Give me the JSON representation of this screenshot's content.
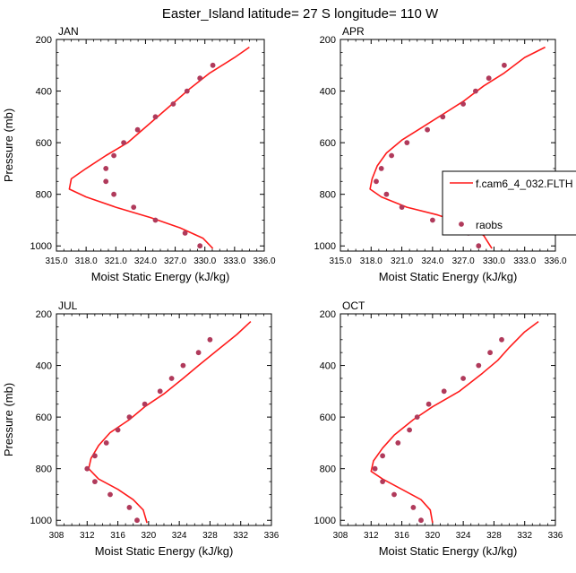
{
  "figure": {
    "title": "Easter_Island  latitude= 27 S longitude= 110 W",
    "ylabel": "Pressure (mb)",
    "xlabel": "Moist Static Energy (kJ/kg)"
  },
  "legend": {
    "model_label": "f.cam6_4_032.FLTH",
    "obs_label": "raobs"
  },
  "colors": {
    "model_line": "#ff1a1a",
    "obs_marker": "#b03a5b",
    "axis": "#000000"
  },
  "chart_data": [
    {
      "type": "line",
      "panel_title": "JAN",
      "xlim": [
        315,
        336
      ],
      "ylim": [
        200,
        1020
      ],
      "y_reversed": true,
      "xticks": [
        315,
        318,
        321,
        324,
        327,
        330,
        333,
        336
      ],
      "xtick_labels": [
        "315.0",
        "318.0",
        "321.0",
        "324.0",
        "327.0",
        "330.0",
        "333.0",
        "336.0"
      ],
      "yticks": [
        200,
        400,
        600,
        800,
        1000
      ],
      "series": [
        {
          "name": "f.cam6_4_032.FLTH",
          "kind": "line",
          "points": [
            [
              334.5,
              230
            ],
            [
              333.0,
              270
            ],
            [
              330.5,
              330
            ],
            [
              328.5,
              390
            ],
            [
              327.0,
              440
            ],
            [
              325.5,
              490
            ],
            [
              324.0,
              540
            ],
            [
              322.2,
              600
            ],
            [
              320.0,
              650
            ],
            [
              318.0,
              700
            ],
            [
              316.5,
              740
            ],
            [
              316.3,
              780
            ],
            [
              318.0,
              810
            ],
            [
              321.0,
              850
            ],
            [
              324.5,
              890
            ],
            [
              327.5,
              930
            ],
            [
              329.8,
              970
            ],
            [
              330.8,
              1010
            ]
          ]
        },
        {
          "name": "raobs",
          "kind": "scatter",
          "points": [
            [
              330.8,
              300
            ],
            [
              329.5,
              350
            ],
            [
              328.2,
              400
            ],
            [
              326.8,
              450
            ],
            [
              325.0,
              500
            ],
            [
              323.2,
              550
            ],
            [
              321.8,
              600
            ],
            [
              320.8,
              650
            ],
            [
              320.0,
              700
            ],
            [
              320.0,
              750
            ],
            [
              320.8,
              800
            ],
            [
              322.8,
              850
            ],
            [
              325.0,
              900
            ],
            [
              328.0,
              950
            ],
            [
              329.5,
              1000
            ]
          ]
        }
      ]
    },
    {
      "type": "line",
      "panel_title": "APR",
      "xlim": [
        315,
        336
      ],
      "ylim": [
        200,
        1020
      ],
      "y_reversed": true,
      "xticks": [
        315,
        318,
        321,
        324,
        327,
        330,
        333,
        336
      ],
      "xtick_labels": [
        "315.0",
        "318.0",
        "321.0",
        "324.0",
        "327.0",
        "330.0",
        "333.0",
        "336.0"
      ],
      "yticks": [
        200,
        400,
        600,
        800,
        1000
      ],
      "series": [
        {
          "name": "f.cam6_4_032.FLTH",
          "kind": "line",
          "points": [
            [
              335.0,
              230
            ],
            [
              333.0,
              270
            ],
            [
              331.0,
              330
            ],
            [
              329.0,
              380
            ],
            [
              327.0,
              440
            ],
            [
              325.0,
              490
            ],
            [
              323.0,
              540
            ],
            [
              321.0,
              590
            ],
            [
              319.5,
              640
            ],
            [
              318.6,
              690
            ],
            [
              318.1,
              740
            ],
            [
              317.9,
              780
            ],
            [
              319.0,
              810
            ],
            [
              321.5,
              850
            ],
            [
              324.5,
              880
            ],
            [
              327.5,
              920
            ],
            [
              329.0,
              960
            ],
            [
              329.8,
              1010
            ]
          ]
        },
        {
          "name": "raobs",
          "kind": "scatter",
          "points": [
            [
              331.0,
              300
            ],
            [
              329.5,
              350
            ],
            [
              328.2,
              400
            ],
            [
              327.0,
              450
            ],
            [
              325.0,
              500
            ],
            [
              323.5,
              550
            ],
            [
              321.5,
              600
            ],
            [
              320.0,
              650
            ],
            [
              319.0,
              700
            ],
            [
              318.5,
              750
            ],
            [
              319.5,
              800
            ],
            [
              321.0,
              850
            ],
            [
              324.0,
              900
            ],
            [
              327.5,
              950
            ],
            [
              328.5,
              1000
            ]
          ]
        }
      ]
    },
    {
      "type": "line",
      "panel_title": "JUL",
      "xlim": [
        308,
        336
      ],
      "ylim": [
        200,
        1020
      ],
      "y_reversed": true,
      "xticks": [
        308,
        312,
        316,
        320,
        324,
        328,
        332,
        336
      ],
      "xtick_labels": [
        "308",
        "312",
        "316",
        "320",
        "324",
        "328",
        "332",
        "336"
      ],
      "yticks": [
        200,
        400,
        600,
        800,
        1000
      ],
      "series": [
        {
          "name": "f.cam6_4_032.FLTH",
          "kind": "line",
          "points": [
            [
              333.3,
              230
            ],
            [
              331.5,
              280
            ],
            [
              329.0,
              340
            ],
            [
              326.5,
              400
            ],
            [
              324.5,
              450
            ],
            [
              322.0,
              510
            ],
            [
              319.5,
              560
            ],
            [
              317.5,
              610
            ],
            [
              315.0,
              660
            ],
            [
              313.5,
              710
            ],
            [
              312.5,
              760
            ],
            [
              312.2,
              800
            ],
            [
              313.5,
              840
            ],
            [
              316.0,
              880
            ],
            [
              318.0,
              920
            ],
            [
              319.3,
              960
            ],
            [
              319.8,
              1010
            ]
          ]
        },
        {
          "name": "raobs",
          "kind": "scatter",
          "points": [
            [
              328.0,
              300
            ],
            [
              326.5,
              350
            ],
            [
              324.5,
              400
            ],
            [
              323.0,
              450
            ],
            [
              321.5,
              500
            ],
            [
              319.5,
              550
            ],
            [
              317.5,
              600
            ],
            [
              316.0,
              650
            ],
            [
              314.5,
              700
            ],
            [
              313.0,
              750
            ],
            [
              312.0,
              800
            ],
            [
              313.0,
              850
            ],
            [
              315.0,
              900
            ],
            [
              317.5,
              950
            ],
            [
              318.5,
              1000
            ]
          ]
        }
      ]
    },
    {
      "type": "line",
      "panel_title": "OCT",
      "xlim": [
        308,
        336
      ],
      "ylim": [
        200,
        1020
      ],
      "y_reversed": true,
      "xticks": [
        308,
        312,
        316,
        320,
        324,
        328,
        332,
        336
      ],
      "xtick_labels": [
        "308",
        "312",
        "316",
        "320",
        "324",
        "328",
        "332",
        "336"
      ],
      "yticks": [
        200,
        400,
        600,
        800,
        1000
      ],
      "series": [
        {
          "name": "f.cam6_4_032.FLTH",
          "kind": "line",
          "points": [
            [
              333.8,
              230
            ],
            [
              332.0,
              270
            ],
            [
              330.0,
              330
            ],
            [
              328.5,
              380
            ],
            [
              326.5,
              430
            ],
            [
              323.5,
              500
            ],
            [
              320.0,
              560
            ],
            [
              317.5,
              610
            ],
            [
              315.0,
              670
            ],
            [
              313.5,
              720
            ],
            [
              312.3,
              770
            ],
            [
              312.0,
              810
            ],
            [
              313.5,
              840
            ],
            [
              316.0,
              880
            ],
            [
              318.5,
              920
            ],
            [
              319.7,
              960
            ],
            [
              320.0,
              1010
            ]
          ]
        },
        {
          "name": "raobs",
          "kind": "scatter",
          "points": [
            [
              329.0,
              300
            ],
            [
              327.5,
              350
            ],
            [
              326.0,
              400
            ],
            [
              324.0,
              450
            ],
            [
              321.5,
              500
            ],
            [
              319.5,
              550
            ],
            [
              318.0,
              600
            ],
            [
              317.0,
              650
            ],
            [
              315.5,
              700
            ],
            [
              313.5,
              750
            ],
            [
              312.5,
              800
            ],
            [
              313.5,
              850
            ],
            [
              315.0,
              900
            ],
            [
              317.5,
              950
            ],
            [
              318.5,
              1000
            ]
          ]
        }
      ]
    }
  ]
}
